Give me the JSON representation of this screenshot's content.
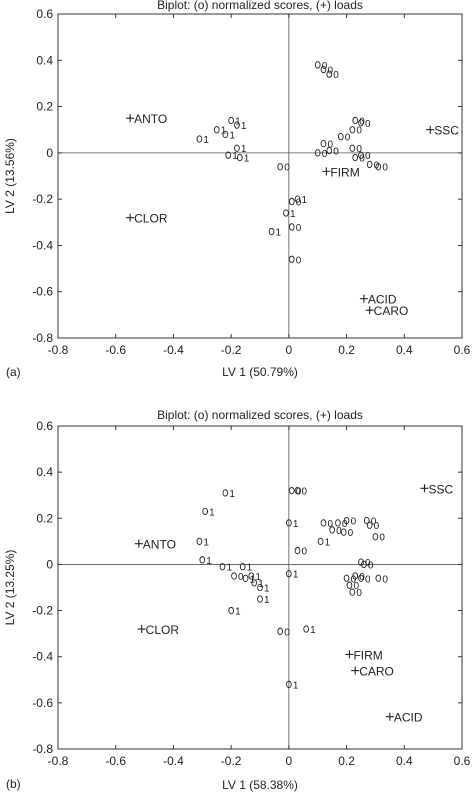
{
  "chart_data": [
    {
      "type": "scatter",
      "panel_label": "(a)",
      "title": "Biplot: (o) normalized scores, (+) loads",
      "xlabel": "LV 1 (50.79%)",
      "ylabel": "LV 2 (13.56%)",
      "xlim": [
        -0.8,
        0.6
      ],
      "ylim": [
        -0.8,
        0.6
      ],
      "xticks": [
        "-0.8",
        "-0.6",
        "-0.4",
        "-0.2",
        "0",
        "0.2",
        "0.4",
        "0.6"
      ],
      "yticks": [
        "0.6",
        "0.4",
        "0.2",
        "0",
        "-0.2",
        "-0.4",
        "-0.6",
        "-0.8"
      ],
      "loads": [
        {
          "label": "ANTO",
          "x": -0.55,
          "y": 0.15
        },
        {
          "label": "SSC",
          "x": 0.49,
          "y": 0.1
        },
        {
          "label": "FIRM",
          "x": 0.13,
          "y": -0.08
        },
        {
          "label": "CLOR",
          "x": -0.55,
          "y": -0.28
        },
        {
          "label": "ACID",
          "x": 0.26,
          "y": -0.63
        },
        {
          "label": "CARO",
          "x": 0.28,
          "y": -0.68
        }
      ],
      "scores": [
        {
          "label": "0",
          "x": 0.1,
          "y": 0.38
        },
        {
          "label": "0",
          "x": 0.12,
          "y": 0.36
        },
        {
          "label": "0",
          "x": 0.14,
          "y": 0.34
        },
        {
          "label": "1",
          "x": -0.2,
          "y": 0.14
        },
        {
          "label": "1",
          "x": -0.25,
          "y": 0.1
        },
        {
          "label": "1",
          "x": -0.31,
          "y": 0.06
        },
        {
          "label": "1",
          "x": -0.18,
          "y": 0.12
        },
        {
          "label": "1",
          "x": -0.22,
          "y": 0.08
        },
        {
          "label": "1",
          "x": -0.17,
          "y": -0.02
        },
        {
          "label": "1",
          "x": -0.21,
          "y": -0.01
        },
        {
          "label": "1",
          "x": -0.18,
          "y": 0.02
        },
        {
          "label": "0",
          "x": 0.23,
          "y": 0.14
        },
        {
          "label": "0",
          "x": 0.25,
          "y": 0.13
        },
        {
          "label": "0",
          "x": 0.22,
          "y": 0.1
        },
        {
          "label": "0",
          "x": 0.18,
          "y": 0.07
        },
        {
          "label": "0",
          "x": 0.12,
          "y": 0.04
        },
        {
          "label": "0",
          "x": 0.14,
          "y": 0.01
        },
        {
          "label": "0",
          "x": 0.1,
          "y": 0.0
        },
        {
          "label": "0",
          "x": 0.22,
          "y": 0.02
        },
        {
          "label": "0",
          "x": 0.25,
          "y": -0.01
        },
        {
          "label": "0",
          "x": 0.28,
          "y": -0.05
        },
        {
          "label": "0",
          "x": 0.31,
          "y": -0.06
        },
        {
          "label": "0",
          "x": 0.23,
          "y": -0.02
        },
        {
          "label": "0",
          "x": -0.03,
          "y": -0.06
        },
        {
          "label": "1",
          "x": 0.03,
          "y": -0.2
        },
        {
          "label": "0",
          "x": 0.01,
          "y": -0.21
        },
        {
          "label": "1",
          "x": -0.01,
          "y": -0.26
        },
        {
          "label": "0",
          "x": 0.01,
          "y": -0.32
        },
        {
          "label": "1",
          "x": -0.06,
          "y": -0.34
        },
        {
          "label": "0",
          "x": 0.01,
          "y": -0.46
        }
      ]
    },
    {
      "type": "scatter",
      "panel_label": "(b)",
      "title": "Biplot: (o) normalized scores, (+) loads",
      "xlabel": "LV 1 (58.38%)",
      "ylabel": "LV 2 (13.25%)",
      "xlim": [
        -0.8,
        0.6
      ],
      "ylim": [
        -0.8,
        0.6
      ],
      "xticks": [
        "-0.8",
        "-0.6",
        "-0.4",
        "-0.2",
        "0",
        "0.2",
        "0.4",
        "0.6"
      ],
      "yticks": [
        "0.6",
        "0.4",
        "0.2",
        "0",
        "-0.2",
        "-0.4",
        "-0.6",
        "-0.8"
      ],
      "loads": [
        {
          "label": "SSC",
          "x": 0.47,
          "y": 0.33
        },
        {
          "label": "ANTO",
          "x": -0.52,
          "y": 0.09
        },
        {
          "label": "CLOR",
          "x": -0.51,
          "y": -0.28
        },
        {
          "label": "FIRM",
          "x": 0.21,
          "y": -0.39
        },
        {
          "label": "CARO",
          "x": 0.23,
          "y": -0.46
        },
        {
          "label": "ACID",
          "x": 0.35,
          "y": -0.66
        }
      ],
      "scores": [
        {
          "label": "1",
          "x": -0.22,
          "y": 0.31
        },
        {
          "label": "0",
          "x": 0.01,
          "y": 0.32
        },
        {
          "label": "0",
          "x": 0.03,
          "y": 0.32
        },
        {
          "label": "1",
          "x": -0.29,
          "y": 0.23
        },
        {
          "label": "1",
          "x": -0.31,
          "y": 0.1
        },
        {
          "label": "1",
          "x": -0.3,
          "y": 0.02
        },
        {
          "label": "1",
          "x": -0.23,
          "y": -0.01
        },
        {
          "label": "1",
          "x": -0.16,
          "y": -0.01
        },
        {
          "label": "0",
          "x": -0.19,
          "y": -0.05
        },
        {
          "label": "1",
          "x": -0.13,
          "y": -0.05
        },
        {
          "label": "1",
          "x": -0.12,
          "y": -0.08
        },
        {
          "label": "1",
          "x": -0.15,
          "y": -0.06
        },
        {
          "label": "1",
          "x": -0.1,
          "y": -0.1
        },
        {
          "label": "1",
          "x": -0.1,
          "y": -0.15
        },
        {
          "label": "1",
          "x": -0.2,
          "y": -0.2
        },
        {
          "label": "1",
          "x": 0.0,
          "y": 0.18
        },
        {
          "label": "0",
          "x": 0.12,
          "y": 0.18
        },
        {
          "label": "0",
          "x": 0.17,
          "y": 0.18
        },
        {
          "label": "0",
          "x": 0.15,
          "y": 0.15
        },
        {
          "label": "1",
          "x": 0.11,
          "y": 0.1
        },
        {
          "label": "0",
          "x": 0.03,
          "y": 0.06
        },
        {
          "label": "0",
          "x": 0.2,
          "y": 0.19
        },
        {
          "label": "0",
          "x": 0.27,
          "y": 0.19
        },
        {
          "label": "0",
          "x": 0.28,
          "y": 0.17
        },
        {
          "label": "0",
          "x": 0.19,
          "y": 0.14
        },
        {
          "label": "0",
          "x": 0.3,
          "y": 0.12
        },
        {
          "label": "1",
          "x": 0.0,
          "y": -0.04
        },
        {
          "label": "0",
          "x": 0.25,
          "y": 0.01
        },
        {
          "label": "0",
          "x": 0.26,
          "y": 0.0
        },
        {
          "label": "0",
          "x": 0.31,
          "y": -0.06
        },
        {
          "label": "0",
          "x": 0.2,
          "y": -0.06
        },
        {
          "label": "0",
          "x": 0.23,
          "y": -0.05
        },
        {
          "label": "0",
          "x": 0.25,
          "y": -0.06
        },
        {
          "label": "0",
          "x": 0.21,
          "y": -0.09
        },
        {
          "label": "0",
          "x": 0.22,
          "y": -0.12
        },
        {
          "label": "1",
          "x": 0.06,
          "y": -0.28
        },
        {
          "label": "0",
          "x": -0.03,
          "y": -0.29
        },
        {
          "label": "1",
          "x": 0.0,
          "y": -0.52
        }
      ]
    }
  ]
}
